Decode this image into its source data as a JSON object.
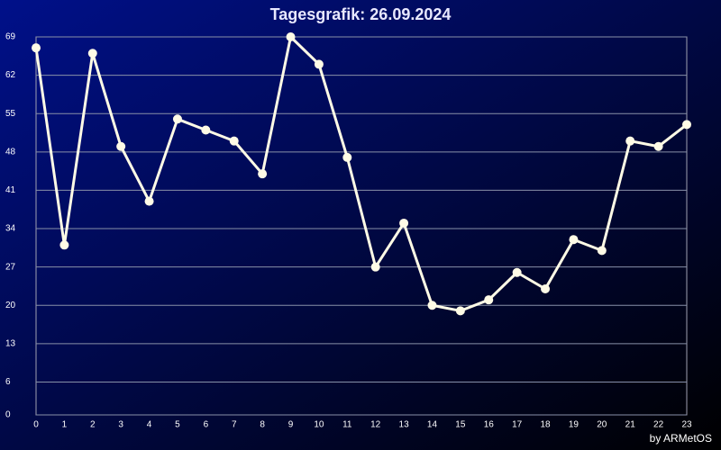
{
  "chart_data": {
    "type": "line",
    "title": "Tagesgrafik: 26.09.2024",
    "credit": "by ARMetOS",
    "x": [
      0,
      1,
      2,
      3,
      4,
      5,
      6,
      7,
      8,
      9,
      10,
      11,
      12,
      13,
      14,
      15,
      16,
      17,
      18,
      19,
      20,
      21,
      22,
      23
    ],
    "series": [
      {
        "color": "#fffbe6",
        "values": [
          67,
          31,
          66,
          49,
          39,
          54,
          52,
          50,
          44,
          69,
          64,
          47,
          27,
          35,
          20,
          19,
          21,
          26,
          23,
          32,
          30,
          50,
          49,
          53
        ]
      }
    ],
    "xlim": [
      0,
      23
    ],
    "xticks": [
      0,
      1,
      2,
      3,
      4,
      5,
      6,
      7,
      8,
      9,
      10,
      11,
      12,
      13,
      14,
      15,
      16,
      17,
      18,
      19,
      20,
      21,
      22,
      23
    ],
    "ylim": [
      0,
      69
    ],
    "yticks": [
      0,
      6,
      13,
      20,
      27,
      34,
      41,
      48,
      55,
      62,
      69
    ],
    "grid": true
  }
}
